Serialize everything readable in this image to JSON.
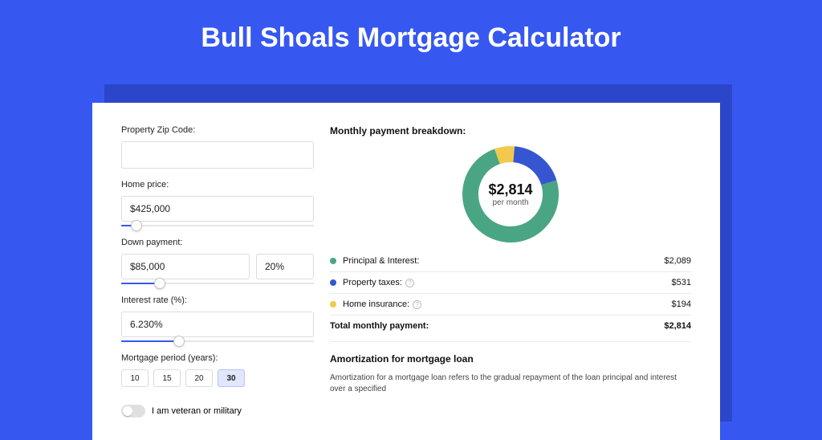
{
  "page_title": "Bull Shoals Mortgage Calculator",
  "colors": {
    "page_bg": "#3758f0",
    "card_shadow": "#2b46c9",
    "card_bg": "#ffffff",
    "accent": "#3758f0",
    "input_border": "#dcdcdc",
    "text": "#111111",
    "muted": "#555555",
    "divider": "#eaeaea"
  },
  "form": {
    "zip": {
      "label": "Property Zip Code:",
      "value": ""
    },
    "home_price": {
      "label": "Home price:",
      "value": "$425,000",
      "slider_fill_pct": 8,
      "thumb_pct": 8
    },
    "down_payment": {
      "label": "Down payment:",
      "amount": "$85,000",
      "percent": "20%",
      "slider_fill_pct": 20,
      "thumb_pct": 20
    },
    "interest_rate": {
      "label": "Interest rate (%):",
      "value": "6.230%",
      "slider_fill_pct": 30,
      "thumb_pct": 30
    },
    "mortgage_period": {
      "label": "Mortgage period (years):",
      "options": [
        "10",
        "15",
        "20",
        "30"
      ],
      "selected": "30"
    },
    "veteran": {
      "label": "I am veteran or military",
      "checked": false
    }
  },
  "breakdown": {
    "title": "Monthly payment breakdown:",
    "donut": {
      "center_value": "$2,814",
      "center_sub": "per month",
      "stroke_width": 20,
      "slices": [
        {
          "key": "principal_interest",
          "color": "#4aa584",
          "pct": 74.2
        },
        {
          "key": "property_taxes",
          "color": "#3656d1",
          "pct": 18.9
        },
        {
          "key": "home_insurance",
          "color": "#f2c94c",
          "pct": 6.9
        }
      ]
    },
    "legend": [
      {
        "label": "Principal & Interest:",
        "amount": "$2,089",
        "color": "#4aa584",
        "help": false
      },
      {
        "label": "Property taxes:",
        "amount": "$531",
        "color": "#3656d1",
        "help": true
      },
      {
        "label": "Home insurance:",
        "amount": "$194",
        "color": "#f2c94c",
        "help": true
      }
    ],
    "total": {
      "label": "Total monthly payment:",
      "amount": "$2,814"
    }
  },
  "amortization": {
    "title": "Amortization for mortgage loan",
    "text": "Amortization for a mortgage loan refers to the gradual repayment of the loan principal and interest over a specified"
  }
}
